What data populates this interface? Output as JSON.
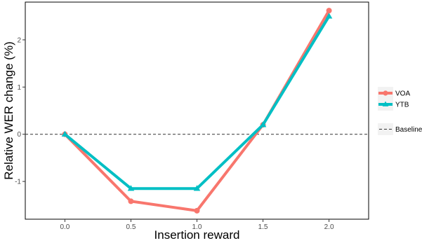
{
  "chart_data": {
    "type": "line",
    "title": "",
    "xlabel": "Insertion reward",
    "ylabel": "Relative WER change (%)",
    "x": [
      0.0,
      0.5,
      1.0,
      1.5,
      2.0
    ],
    "x_tick_labels": [
      "0.0",
      "0.5",
      "1.0",
      "1.5",
      "2.0"
    ],
    "y_ticks": [
      -1,
      0,
      1,
      2
    ],
    "y_tick_labels": [
      "-1",
      "0",
      "1",
      "2"
    ],
    "xlim": [
      -0.3,
      2.3
    ],
    "ylim": [
      -1.8,
      2.8
    ],
    "grid": false,
    "legend_position": "right",
    "series": [
      {
        "name": "VOA",
        "values": [
          0.0,
          -1.42,
          -1.62,
          0.2,
          2.62
        ],
        "color": "#F8766D",
        "marker": "circle"
      },
      {
        "name": "YTB",
        "values": [
          0.0,
          -1.15,
          -1.15,
          0.2,
          2.5
        ],
        "color": "#00BFC4",
        "marker": "triangle"
      }
    ],
    "baseline": {
      "name": "Baseline",
      "value": 0,
      "style": "dashed",
      "color": "#333333"
    }
  }
}
